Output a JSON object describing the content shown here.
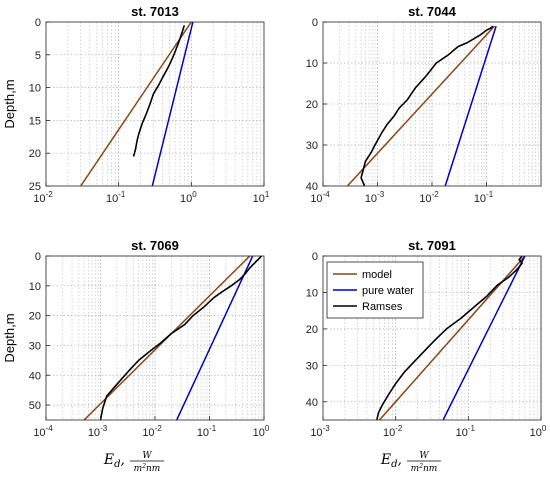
{
  "chart_data": [
    {
      "type": "line",
      "title": "st. 7013",
      "ylabel": "Depth,m",
      "xlabel": "",
      "xscale": "log",
      "xlim": [
        0.01,
        10
      ],
      "ylim": [
        0,
        25
      ],
      "y_reversed": true,
      "xticks": [
        "10",
        "-2",
        "10",
        "-1",
        "10",
        "0",
        "10",
        "1"
      ],
      "yticks": [
        "0",
        "5",
        "10",
        "15",
        "20",
        "25"
      ],
      "grid": true,
      "series": [
        {
          "name": "model",
          "color": "#8B4513",
          "x": [
            1.0,
            0.03
          ],
          "y": [
            0,
            25
          ]
        },
        {
          "name": "pure water",
          "color": "#0000CC",
          "x": [
            1.05,
            0.29
          ],
          "y": [
            0,
            25
          ]
        },
        {
          "name": "Ramses",
          "color": "#000000",
          "x": [
            0.8,
            0.75,
            0.7,
            0.65,
            0.6,
            0.55,
            0.5,
            0.45,
            0.4,
            0.36,
            0.3,
            0.27,
            0.24,
            0.21,
            0.19,
            0.18,
            0.17,
            0.16
          ],
          "y": [
            0.5,
            1.5,
            2.5,
            3.5,
            4.5,
            5.5,
            6.5,
            7.5,
            8.5,
            9.5,
            11,
            12.5,
            14,
            15.5,
            17,
            18,
            19.5,
            20.5
          ]
        }
      ]
    },
    {
      "type": "line",
      "title": "st. 7044",
      "ylabel": "",
      "xlabel": "",
      "xscale": "log",
      "xlim": [
        0.0001,
        1
      ],
      "ylim": [
        0,
        40
      ],
      "y_reversed": true,
      "xticks": [
        "10",
        "-4",
        "10",
        "-3",
        "10",
        "-2",
        "10",
        "-1"
      ],
      "yticks": [
        "0",
        "10",
        "20",
        "30",
        "40"
      ],
      "grid": true,
      "series": [
        {
          "name": "model",
          "color": "#8B4513",
          "x": [
            0.14,
            0.00028
          ],
          "y": [
            1,
            40
          ]
        },
        {
          "name": "pure water",
          "color": "#0000CC",
          "x": [
            0.15,
            0.0175
          ],
          "y": [
            1,
            40
          ]
        },
        {
          "name": "Ramses",
          "color": "#000000",
          "x": [
            0.13,
            0.12,
            0.1,
            0.08,
            0.06,
            0.045,
            0.03,
            0.02,
            0.012,
            0.008,
            0.005,
            0.0035,
            0.0025,
            0.002,
            0.0015,
            0.0012,
            0.0009,
            0.00075,
            0.0006,
            0.00055,
            0.0005,
            0.00058
          ],
          "y": [
            1,
            1.5,
            2,
            3,
            4,
            5,
            6,
            8,
            10,
            13,
            16,
            19,
            21,
            23,
            25,
            27,
            30,
            32,
            34,
            36,
            38,
            40
          ]
        }
      ]
    },
    {
      "type": "line",
      "title": "st. 7069",
      "ylabel": "Depth,m",
      "xlabel": "E_d, W/m²nm",
      "xscale": "log",
      "xlim": [
        0.0001,
        1
      ],
      "ylim": [
        0,
        55
      ],
      "y_reversed": true,
      "xticks": [
        "10",
        "-4",
        "10",
        "-3",
        "10",
        "-2",
        "10",
        "-1",
        "10",
        "0"
      ],
      "yticks": [
        "0",
        "10",
        "20",
        "30",
        "40",
        "50"
      ],
      "grid": true,
      "series": [
        {
          "name": "model",
          "color": "#8B4513",
          "x": [
            0.55,
            0.0005
          ],
          "y": [
            0,
            55
          ]
        },
        {
          "name": "pure water",
          "color": "#0000CC",
          "x": [
            0.62,
            0.025
          ],
          "y": [
            0,
            55
          ]
        },
        {
          "name": "Ramses",
          "color": "#000000",
          "x": [
            0.9,
            0.8,
            0.7,
            0.55,
            0.45,
            0.35,
            0.25,
            0.17,
            0.12,
            0.08,
            0.05,
            0.035,
            0.02,
            0.013,
            0.008,
            0.005,
            0.0035,
            0.0025,
            0.0018,
            0.0013,
            0.0011,
            0.001
          ],
          "y": [
            0,
            1,
            2,
            4,
            6,
            8,
            10,
            12,
            14,
            17,
            20,
            23,
            26,
            29,
            32,
            35,
            38,
            41,
            44,
            47,
            51,
            55
          ]
        }
      ]
    },
    {
      "type": "line",
      "title": "st. 7091",
      "ylabel": "",
      "xlabel": "E_d, W/m²nm",
      "xscale": "log",
      "xlim": [
        0.001,
        1
      ],
      "ylim": [
        0,
        45
      ],
      "y_reversed": true,
      "xticks": [
        "10",
        "-3",
        "10",
        "-2",
        "10",
        "-1",
        "10",
        "0"
      ],
      "yticks": [
        "0",
        "10",
        "20",
        "30",
        "40"
      ],
      "grid": true,
      "legend": {
        "position": "top-left",
        "entries": [
          "model",
          "pure water",
          "Ramses"
        ]
      },
      "series": [
        {
          "name": "model",
          "color": "#8B4513",
          "x": [
            0.6,
            0.006
          ],
          "y": [
            0,
            45
          ]
        },
        {
          "name": "pure water",
          "color": "#0000CC",
          "x": [
            0.6,
            0.045
          ],
          "y": [
            0,
            45
          ]
        },
        {
          "name": "Ramses",
          "color": "#000000",
          "x": [
            0.55,
            0.5,
            0.55,
            0.45,
            0.35,
            0.25,
            0.18,
            0.12,
            0.08,
            0.05,
            0.035,
            0.025,
            0.018,
            0.013,
            0.01,
            0.008,
            0.0065,
            0.0058,
            0.0055
          ],
          "y": [
            0,
            1,
            2,
            4,
            6,
            8,
            11,
            14,
            17,
            20,
            23,
            26,
            29,
            32,
            35,
            38,
            41,
            43,
            45
          ]
        }
      ]
    }
  ]
}
